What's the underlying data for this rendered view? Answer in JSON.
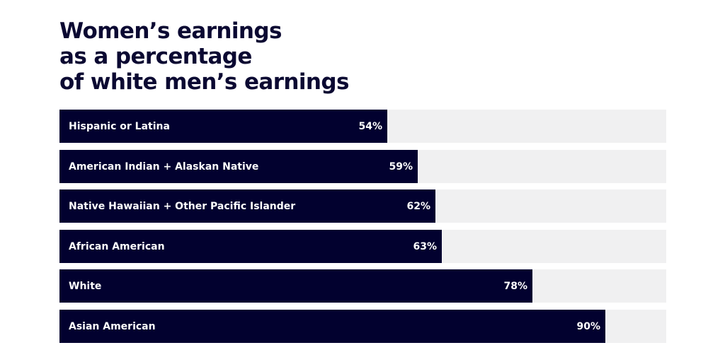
{
  "chart_data": {
    "type": "bar",
    "orientation": "horizontal",
    "title_lines": [
      "Women’s earnings",
      "as a percentage",
      "of white men’s earnings"
    ],
    "categories": [
      "Hispanic or Latina",
      "American Indian + Alaskan Native",
      "Native Hawaiian + Other Pacific Islander",
      "African American",
      "White",
      "Asian American"
    ],
    "values": [
      54,
      59,
      62,
      63,
      78,
      90
    ],
    "value_labels": [
      "54%",
      "59%",
      "62%",
      "63%",
      "78%",
      "90%"
    ],
    "xlim": [
      0,
      100
    ],
    "grid": false,
    "legend": "none"
  },
  "colors": {
    "title": "#0b0932",
    "bar": "#02012f",
    "track": "#f0f0f1",
    "bar_text": "#ffffff"
  }
}
